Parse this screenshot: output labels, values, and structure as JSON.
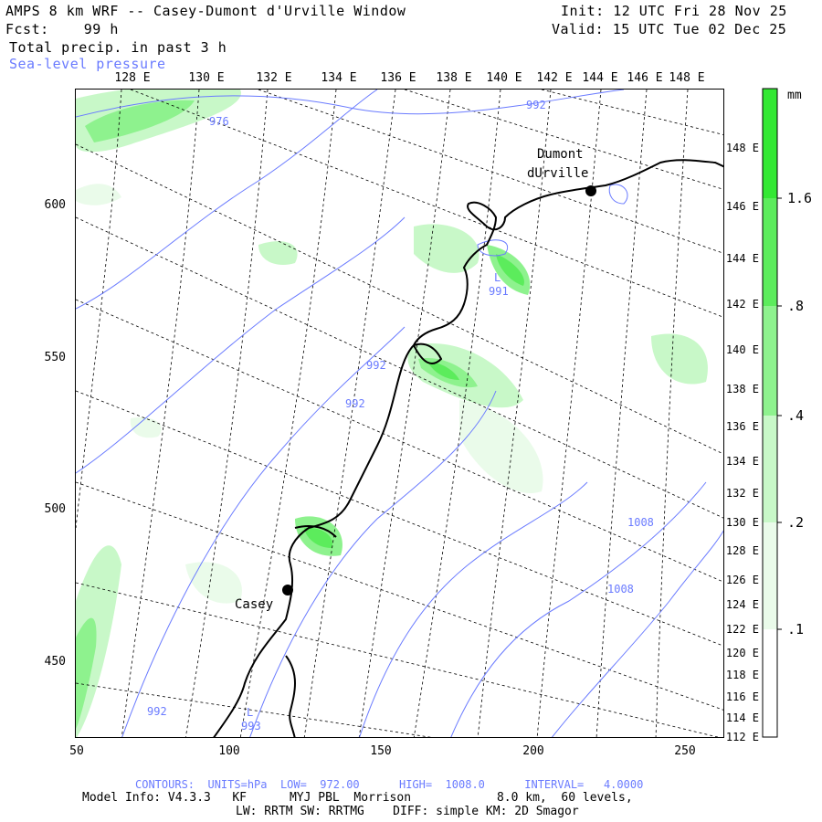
{
  "header": {
    "title": "AMPS 8 km WRF -- Casey-Dumont d'Urville Window",
    "fcst_label": "Fcst:",
    "fcst_value": "99 h",
    "field1": "Total precip. in past 3 h",
    "field2": "Sea-level pressure",
    "init_label": "Init:",
    "init_value": "12 UTC Fri 28 Nov 25",
    "valid_label": "Valid:",
    "valid_value": "15 UTC Tue 02 Dec 25"
  },
  "map": {
    "top_lon_labels": [
      "128 E",
      "130 E",
      "132 E",
      "134 E",
      "136 E",
      "138 E",
      "140 E",
      "142 E",
      "144 E",
      "146 E",
      "148 E"
    ],
    "right_lon_labels": [
      "148 E",
      "146 E",
      "144 E",
      "142 E",
      "140 E",
      "138 E",
      "136 E",
      "134 E",
      "132 E",
      "130 E",
      "128 E",
      "126 E",
      "124 E",
      "122 E",
      "120 E",
      "118 E",
      "116 E",
      "114 E",
      "112 E"
    ],
    "x_axis_labels": [
      "50",
      "100",
      "150",
      "200",
      "250"
    ],
    "y_axis_labels": [
      "600",
      "550",
      "500",
      "450"
    ],
    "stations": [
      {
        "name": "Casey"
      },
      {
        "name_line1": "Dumont",
        "name_line2": "dUrville"
      }
    ],
    "isobar_labels": [
      "976",
      "992",
      "991",
      "992",
      "992",
      "1008",
      "1008",
      "992",
      "993"
    ],
    "low_markers": [
      "L",
      "L"
    ]
  },
  "colorbar": {
    "units": "mm",
    "labels": [
      "1.6",
      ".8",
      ".4",
      ".2",
      ".1"
    ],
    "colors": [
      "#33e833",
      "#5cec5c",
      "#8ef28e",
      "#c8f8c8",
      "#eafbea",
      "#ffffff"
    ]
  },
  "footer": {
    "contours_text": "CONTOURS:  UNITS=hPa  LOW=  972.00      HIGH=  1008.0      INTERVAL=   4.0000",
    "model_line1": "Model Info: V4.3.3   KF      MYJ PBL  Morrison            8.0 km,  60 levels,",
    "model_line2": "LW: RRTM SW: RRTMG    DIFF: simple KM: 2D Smagor"
  }
}
